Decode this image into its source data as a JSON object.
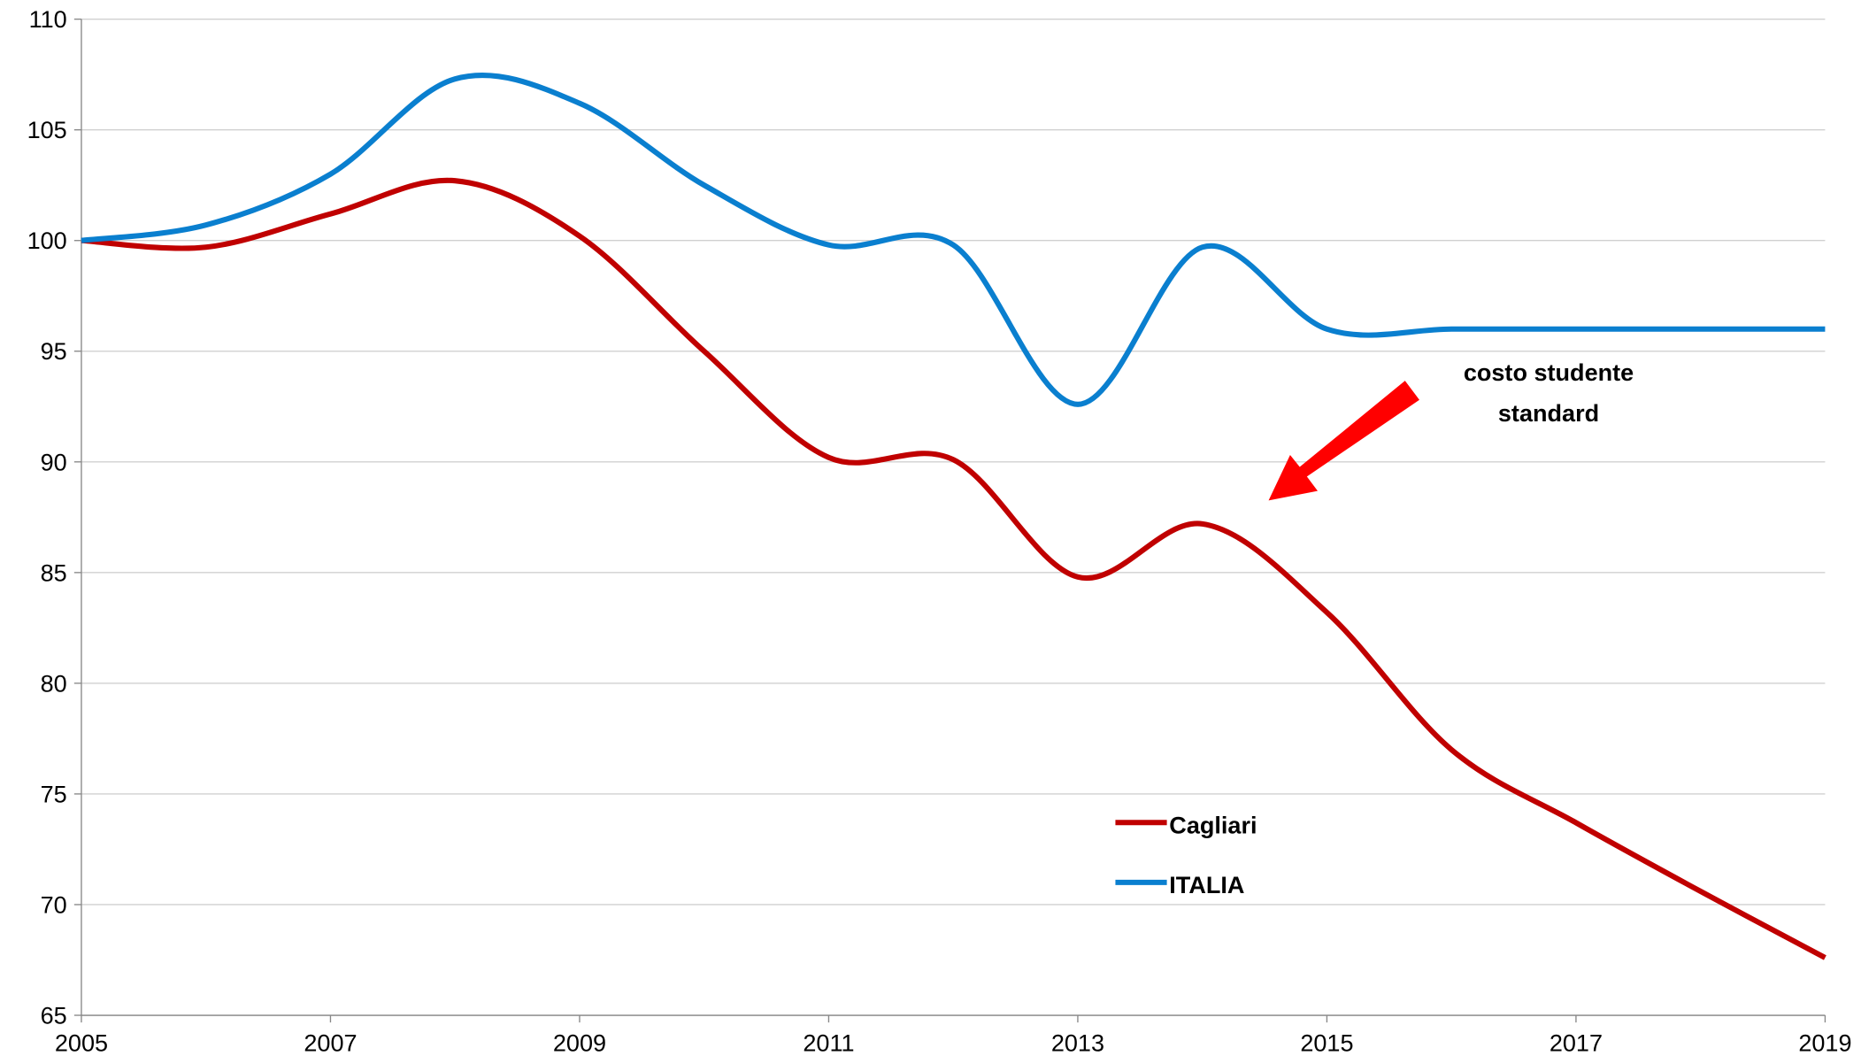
{
  "chart_data": {
    "type": "line",
    "x": [
      2005,
      2006,
      2007,
      2008,
      2009,
      2010,
      2011,
      2012,
      2013,
      2014,
      2015,
      2016,
      2017,
      2018,
      2019
    ],
    "series": [
      {
        "name": "Cagliari",
        "color": "#c00000",
        "values": [
          100,
          99.7,
          101.2,
          102.7,
          100.2,
          95,
          90.2,
          90.1,
          84.8,
          87.2,
          83.2,
          77,
          73.7,
          70.6,
          67.6
        ]
      },
      {
        "name": "ITALIA",
        "color": "#0a7fcf",
        "values": [
          100,
          100.7,
          103,
          107.3,
          106.2,
          102.5,
          99.8,
          99.8,
          92.6,
          99.7,
          96,
          96,
          96,
          96,
          96
        ]
      }
    ],
    "xlim": [
      2005,
      2019
    ],
    "xticks": [
      2005,
      2007,
      2009,
      2011,
      2013,
      2015,
      2017,
      2019
    ],
    "ylim": [
      65,
      110
    ],
    "yticks": [
      65,
      70,
      75,
      80,
      85,
      90,
      95,
      100,
      105,
      110
    ],
    "grid": true,
    "smooth": true,
    "legend": "lower center",
    "annotation": {
      "lines": [
        "costo studente",
        "standard"
      ],
      "color": "#ff0000"
    }
  }
}
